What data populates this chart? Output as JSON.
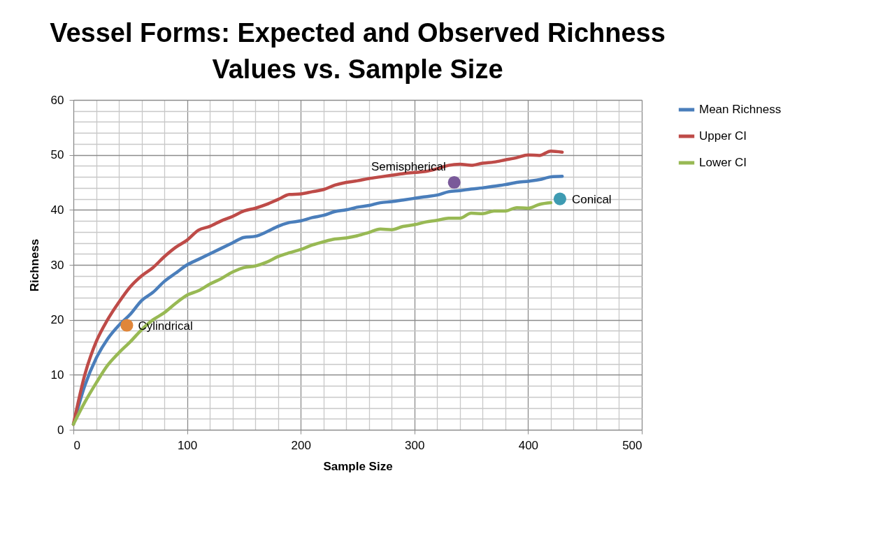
{
  "chart_data": {
    "type": "line",
    "title": "Vessel Forms:  Expected and Observed Richness Values vs. Sample Size",
    "xlabel": "Sample Size",
    "ylabel": "Richness",
    "x": [
      0,
      10,
      20,
      30,
      40,
      50,
      60,
      70,
      80,
      90,
      100,
      110,
      120,
      130,
      140,
      150,
      160,
      170,
      180,
      190,
      200,
      210,
      220,
      230,
      240,
      250,
      260,
      270,
      280,
      290,
      300,
      310,
      320,
      330,
      340,
      350,
      360,
      370,
      380,
      390,
      400,
      410,
      420,
      430
    ],
    "series": [
      {
        "name": "Mean Richness",
        "color": "#4a7ebb",
        "values": [
          1,
          8,
          13,
          16.5,
          19,
          21,
          23.5,
          25,
          27,
          28.5,
          30,
          31,
          32,
          33,
          34,
          35,
          35.2,
          36,
          37,
          37.7,
          38,
          38.6,
          39,
          39.7,
          40,
          40.5,
          40.8,
          41.3,
          41.5,
          41.8,
          42.1,
          42.4,
          42.7,
          43.3,
          43.5,
          43.8,
          44,
          44.3,
          44.6,
          45,
          45.2,
          45.5,
          46,
          46.1
        ]
      },
      {
        "name": "Upper CI",
        "color": "#be4b48",
        "values": [
          1,
          10,
          16,
          20,
          23.2,
          26,
          28,
          29.5,
          31.5,
          33.2,
          34.5,
          36.3,
          37,
          38,
          38.8,
          39.8,
          40.3,
          41,
          41.9,
          42.8,
          42.9,
          43.3,
          43.7,
          44.5,
          45,
          45.3,
          45.7,
          46,
          46.3,
          46.6,
          46.8,
          47,
          47.5,
          48.1,
          48.3,
          48.1,
          48.5,
          48.7,
          49.1,
          49.5,
          50,
          49.9,
          50.7,
          50.5
        ]
      },
      {
        "name": "Lower CI",
        "color": "#98b954",
        "values": [
          1,
          5,
          8.5,
          11.7,
          14,
          16,
          18.2,
          20,
          21.3,
          23,
          24.5,
          25.3,
          26.5,
          27.5,
          28.7,
          29.5,
          29.8,
          30.5,
          31.5,
          32.2,
          32.8,
          33.6,
          34.2,
          34.7,
          34.9,
          35.3,
          35.9,
          36.5,
          36.4,
          37,
          37.3,
          37.8,
          38.1,
          38.5,
          38.5,
          39.4,
          39.3,
          39.8,
          39.8,
          40.4,
          40.3,
          41,
          41.3,
          null
        ]
      },
      {
        "name": "Cylindrical",
        "type": "scatter",
        "color": "#e0863a",
        "x": [
          47
        ],
        "values": [
          19
        ]
      },
      {
        "name": "Semispherical",
        "type": "scatter",
        "color": "#7a5a9a",
        "x": [
          335
        ],
        "values": [
          45
        ]
      },
      {
        "name": "Conical",
        "type": "scatter",
        "color": "#3e9bb2",
        "x": [
          428
        ],
        "values": [
          42
        ]
      }
    ],
    "xlim": [
      0,
      500
    ],
    "xticks": [
      0,
      {
        "value": 20,
        "label": null
      },
      {
        "value": 40,
        "label": null
      },
      {
        "value": 60,
        "label": null
      },
      {
        "value": 80,
        "label": null
      },
      100,
      {
        "value": 120,
        "label": null
      },
      {
        "value": 140,
        "label": null
      },
      {
        "value": 160,
        "label": null
      },
      {
        "value": 180,
        "label": null
      },
      200,
      {
        "value": 220,
        "label": null
      },
      {
        "value": 240,
        "label": null
      },
      {
        "value": 260,
        "label": null
      },
      {
        "value": 280,
        "label": null
      },
      300,
      {
        "value": 320,
        "label": null
      },
      {
        "value": 340,
        "label": null
      },
      {
        "value": 360,
        "label": null
      },
      {
        "value": 380,
        "label": null
      },
      400,
      {
        "value": 420,
        "label": null
      },
      {
        "value": 440,
        "label": null
      },
      {
        "value": 460,
        "label": null
      },
      {
        "value": 480,
        "label": null
      },
      500
    ],
    "ylim": [
      0,
      60
    ],
    "yticks": [
      0,
      {
        "value": 2,
        "label": null
      },
      {
        "value": 4,
        "label": null
      },
      {
        "value": 6,
        "label": null
      },
      {
        "value": 8,
        "label": null
      },
      10,
      {
        "value": 12,
        "label": null
      },
      {
        "value": 14,
        "label": null
      },
      {
        "value": 16,
        "label": null
      },
      {
        "value": 18,
        "label": null
      },
      20,
      {
        "value": 22,
        "label": null
      },
      {
        "value": 24,
        "label": null
      },
      {
        "value": 26,
        "label": null
      },
      {
        "value": 28,
        "label": null
      },
      30,
      {
        "value": 32,
        "label": null
      },
      {
        "value": 34,
        "label": null
      },
      {
        "value": 36,
        "label": null
      },
      {
        "value": 38,
        "label": null
      },
      40,
      {
        "value": 42,
        "label": null
      },
      {
        "value": 44,
        "label": null
      },
      {
        "value": 46,
        "label": null
      },
      {
        "value": 48,
        "label": null
      },
      50,
      {
        "value": 52,
        "label": null
      },
      {
        "value": 54,
        "label": null
      },
      {
        "value": 56,
        "label": null
      },
      {
        "value": 58,
        "label": null
      },
      60
    ],
    "grid": true,
    "legend": "right",
    "line_style": "solid"
  }
}
